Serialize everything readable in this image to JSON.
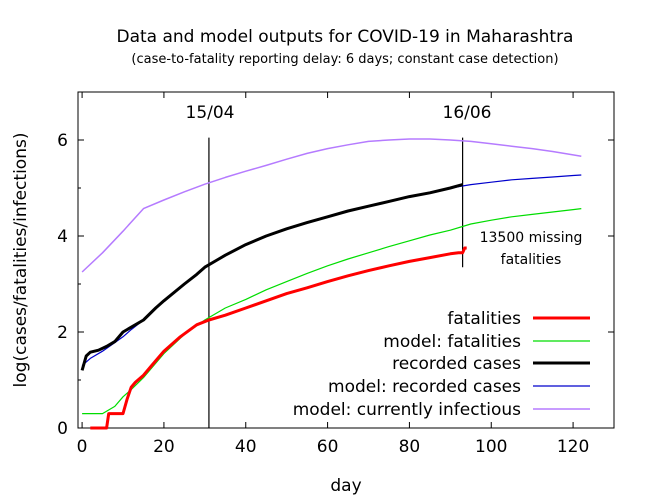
{
  "chart_data": {
    "type": "line",
    "title": "Data and model outputs for COVID-19 in Maharashtra",
    "subtitle": "(case-to-fatality reporting delay: 6 days; constant case detection)",
    "xlabel": "day",
    "ylabel": "log(cases/fatalities/infections)",
    "xlim": [
      -1,
      130
    ],
    "ylim": [
      0,
      7
    ],
    "xticks": [
      "0",
      "20",
      "40",
      "60",
      "80",
      "100",
      "120"
    ],
    "yticks": [
      "0",
      "2",
      "4",
      "6"
    ],
    "grid": false,
    "legend_position": "bottom-right",
    "annotations": {
      "date_left": "15/04",
      "date_right": "16/06",
      "missing_line1": "13500 missing",
      "missing_line2": "fatalities"
    },
    "vlines": [
      {
        "label": "15/04",
        "x": 31
      },
      {
        "label": "16/06",
        "x": 93
      }
    ],
    "series": [
      {
        "name": "fatalities",
        "color": "#ff0000",
        "x": [
          2,
          6,
          6.5,
          10,
          11,
          12,
          13,
          15,
          17,
          20,
          24,
          28,
          31,
          35,
          40,
          45,
          50,
          55,
          60,
          65,
          70,
          75,
          80,
          85,
          90,
          92,
          93,
          93.5,
          94
        ],
        "y": [
          0,
          0,
          0.3,
          0.3,
          0.6,
          0.85,
          0.95,
          1.1,
          1.3,
          1.6,
          1.9,
          2.15,
          2.25,
          2.35,
          2.5,
          2.65,
          2.8,
          2.92,
          3.05,
          3.17,
          3.28,
          3.38,
          3.47,
          3.55,
          3.63,
          3.65,
          3.65,
          3.75,
          3.75
        ]
      },
      {
        "name": "model: fatalities",
        "color": "#00dd00",
        "x": [
          0,
          5,
          8,
          10,
          12,
          15,
          18,
          20,
          25,
          30,
          35,
          40,
          45,
          50,
          55,
          60,
          65,
          70,
          75,
          80,
          85,
          90,
          95,
          100,
          105,
          110,
          115,
          120,
          122
        ],
        "y": [
          0.3,
          0.3,
          0.45,
          0.65,
          0.8,
          1.05,
          1.35,
          1.55,
          1.95,
          2.25,
          2.5,
          2.68,
          2.88,
          3.05,
          3.22,
          3.38,
          3.52,
          3.65,
          3.78,
          3.9,
          4.02,
          4.12,
          4.25,
          4.33,
          4.4,
          4.45,
          4.5,
          4.55,
          4.57
        ]
      },
      {
        "name": "recorded cases",
        "color": "#000000",
        "x": [
          0,
          1,
          2,
          4,
          6,
          8,
          10,
          12,
          15,
          18,
          20,
          25,
          28,
          30,
          33,
          35,
          40,
          45,
          50,
          55,
          60,
          65,
          70,
          75,
          80,
          85,
          90,
          93
        ],
        "y": [
          1.2,
          1.5,
          1.58,
          1.62,
          1.7,
          1.8,
          2.0,
          2.1,
          2.25,
          2.5,
          2.65,
          3.0,
          3.2,
          3.35,
          3.5,
          3.6,
          3.82,
          4.0,
          4.15,
          4.28,
          4.4,
          4.52,
          4.62,
          4.72,
          4.82,
          4.9,
          5.0,
          5.07
        ]
      },
      {
        "name": "model: recorded cases",
        "color": "#0000cc",
        "x": [
          0,
          2,
          5,
          8,
          10,
          12,
          15,
          18,
          20,
          25,
          30,
          35,
          40,
          45,
          50,
          55,
          60,
          65,
          70,
          75,
          80,
          85,
          90,
          95,
          100,
          105,
          110,
          115,
          120,
          122
        ],
        "y": [
          1.3,
          1.45,
          1.6,
          1.78,
          1.9,
          2.05,
          2.25,
          2.5,
          2.65,
          3.0,
          3.35,
          3.6,
          3.82,
          4.0,
          4.15,
          4.28,
          4.4,
          4.52,
          4.62,
          4.72,
          4.82,
          4.9,
          5.0,
          5.07,
          5.12,
          5.17,
          5.2,
          5.23,
          5.26,
          5.27
        ]
      },
      {
        "name": "model: currently infectious",
        "color": "#b57bff",
        "x": [
          0,
          5,
          10,
          15,
          20,
          25,
          30,
          35,
          40,
          45,
          50,
          55,
          60,
          65,
          70,
          75,
          80,
          85,
          90,
          95,
          100,
          105,
          110,
          115,
          120,
          122
        ],
        "y": [
          3.25,
          3.65,
          4.1,
          4.57,
          4.75,
          4.92,
          5.08,
          5.22,
          5.35,
          5.47,
          5.6,
          5.72,
          5.82,
          5.9,
          5.97,
          6.0,
          6.02,
          6.02,
          6.0,
          5.97,
          5.92,
          5.87,
          5.82,
          5.76,
          5.69,
          5.66
        ]
      }
    ]
  }
}
